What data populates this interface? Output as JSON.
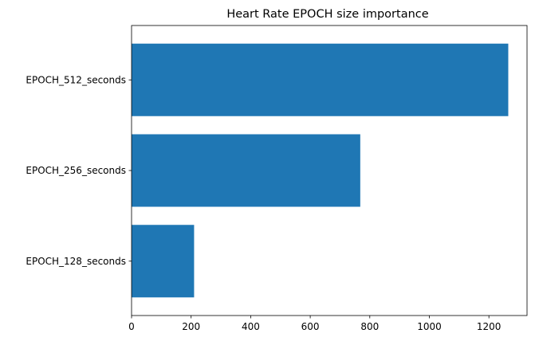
{
  "chart_data": {
    "type": "bar",
    "orientation": "horizontal",
    "title": "Heart Rate EPOCH size importance",
    "xlabel": "",
    "ylabel": "",
    "categories": [
      "EPOCH_128_seconds",
      "EPOCH_256_seconds",
      "EPOCH_512_seconds"
    ],
    "values": [
      210,
      768,
      1265
    ],
    "xlim": [
      0,
      1328
    ],
    "xticks": [
      0,
      200,
      400,
      600,
      800,
      1000,
      1200
    ],
    "grid": false,
    "bar_color": "#1f77b4"
  }
}
